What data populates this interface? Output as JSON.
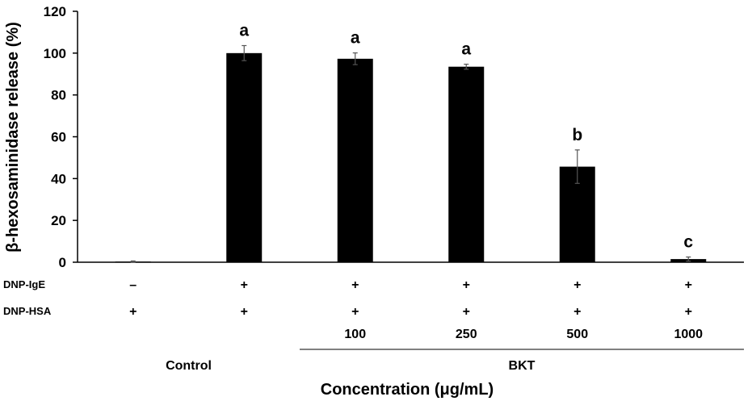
{
  "chart_data": {
    "type": "bar",
    "categories": [
      "Control",
      "DNP-IgE/HSA",
      "100",
      "250",
      "500",
      "1000"
    ],
    "values": [
      0.3,
      100,
      97.3,
      93.5,
      45.7,
      1.5
    ],
    "errors": [
      0.3,
      3.6,
      2.8,
      1.2,
      8.0,
      1.0
    ],
    "significance": [
      "",
      "a",
      "a",
      "a",
      "b",
      "c"
    ],
    "ylabel": "β-hexosaminidase release (%)",
    "xlabel": "Concentration (μg/mL)",
    "ylim": [
      0,
      120
    ],
    "yticks": [
      "0",
      "20",
      "40",
      "60",
      "80",
      "100",
      "120"
    ],
    "bar_color": "#000000",
    "grid": false,
    "treatment_rows": [
      {
        "label": "DNP-IgE",
        "values": [
          "–",
          "+",
          "+",
          "+",
          "+",
          "+"
        ]
      },
      {
        "label": "DNP-HSA",
        "values": [
          "+",
          "+",
          "+",
          "+",
          "+",
          "+"
        ]
      }
    ],
    "concentration_labels": [
      "",
      "",
      "100",
      "250",
      "500",
      "1000"
    ],
    "groups": [
      {
        "label": "Control",
        "categories": [
          0,
          1
        ]
      },
      {
        "label": "BKT",
        "categories": [
          2,
          3,
          4,
          5
        ]
      }
    ]
  }
}
